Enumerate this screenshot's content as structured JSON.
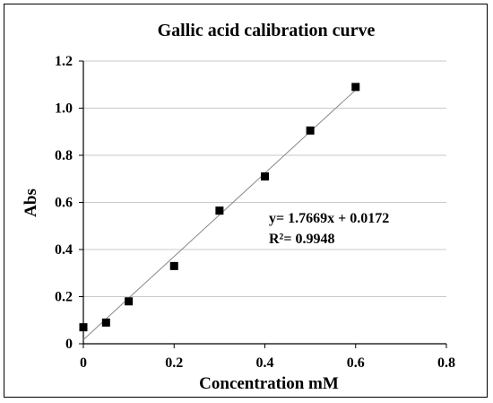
{
  "chart_data": {
    "type": "scatter",
    "title": "Gallic acid calibration curve",
    "xlabel": "Concentration mM",
    "ylabel": "Abs",
    "xlim": [
      0,
      0.8
    ],
    "ylim": [
      0,
      1.2
    ],
    "xticks": [
      "0",
      "0.2",
      "0.4",
      "0.6",
      "0.8"
    ],
    "yticks": [
      "0",
      "0.2",
      "0.4",
      "0.6",
      "0.8",
      "1.0",
      "1.2"
    ],
    "grid": true,
    "series": [
      {
        "marker": "square",
        "color": "#000000",
        "x": [
          0,
          0.05,
          0.1,
          0.2,
          0.3,
          0.4,
          0.5,
          0.6
        ],
        "y": [
          0.07,
          0.09,
          0.18,
          0.33,
          0.565,
          0.71,
          0.905,
          1.09
        ]
      }
    ],
    "trendline": {
      "slope": 1.7669,
      "intercept": 0.0172,
      "x_range": [
        0,
        0.6
      ],
      "color": "#888888"
    },
    "annotations": [
      "y= 1.7669x + 0.0172",
      "R²= 0.9948"
    ]
  }
}
